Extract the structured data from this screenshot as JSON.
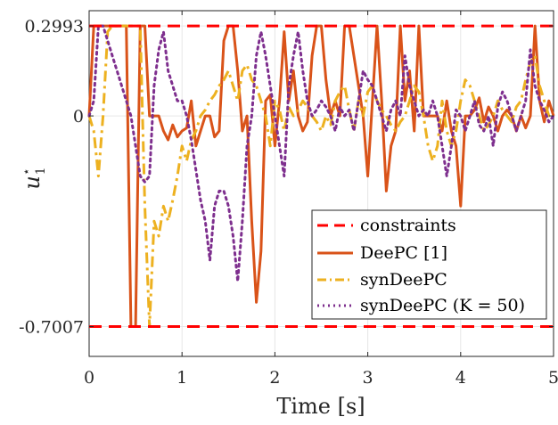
{
  "chart_data": {
    "type": "line",
    "xlabel": "Time [s]",
    "ylabel": "u",
    "ylabel_superscript": "⋆",
    "ylabel_subscript": "1",
    "xlim": [
      0,
      5
    ],
    "ylim": [
      -0.8,
      0.35
    ],
    "xticks": [
      0,
      1,
      2,
      3,
      4,
      5
    ],
    "xtick_labels": [
      "0",
      "1",
      "2",
      "3",
      "4",
      "5"
    ],
    "yticks": [
      0.2993,
      0,
      -0.7007
    ],
    "ytick_labels": [
      "0.2993",
      "0",
      "-0.7007"
    ],
    "grid": true,
    "legend_position": "lower-right",
    "series": [
      {
        "name": "constraints",
        "color": "#ff0000",
        "style": "dashed",
        "x": [
          0,
          5
        ],
        "y": [
          0.2993,
          0.2993
        ],
        "y2": [
          -0.7007,
          -0.7007
        ]
      },
      {
        "name": "DeePC [1]",
        "color": "#d95319",
        "style": "solid",
        "x": [
          0.0,
          0.05,
          0.1,
          0.15,
          0.2,
          0.25,
          0.3,
          0.35,
          0.4,
          0.45,
          0.5,
          0.55,
          0.6,
          0.65,
          0.7,
          0.75,
          0.8,
          0.85,
          0.9,
          0.95,
          1.0,
          1.05,
          1.1,
          1.15,
          1.2,
          1.25,
          1.3,
          1.35,
          1.4,
          1.45,
          1.5,
          1.55,
          1.6,
          1.65,
          1.7,
          1.75,
          1.8,
          1.85,
          1.9,
          1.95,
          2.0,
          2.05,
          2.1,
          2.15,
          2.2,
          2.25,
          2.3,
          2.35,
          2.4,
          2.45,
          2.5,
          2.55,
          2.6,
          2.65,
          2.7,
          2.75,
          2.8,
          2.85,
          2.9,
          2.95,
          3.0,
          3.05,
          3.1,
          3.15,
          3.2,
          3.25,
          3.3,
          3.35,
          3.4,
          3.45,
          3.5,
          3.55,
          3.6,
          3.65,
          3.7,
          3.75,
          3.8,
          3.85,
          3.9,
          3.95,
          4.0,
          4.05,
          4.1,
          4.15,
          4.2,
          4.25,
          4.3,
          4.35,
          4.4,
          4.45,
          4.5,
          4.55,
          4.6,
          4.65,
          4.7,
          4.75,
          4.8,
          4.85,
          4.9,
          4.95,
          5.0
        ],
        "y": [
          0.0,
          0.2993,
          0.2993,
          0.2993,
          0.2993,
          0.2993,
          0.2993,
          0.2993,
          0.2993,
          -0.7007,
          -0.7007,
          0.2993,
          0.2993,
          0.0,
          0.0,
          0.0,
          -0.05,
          -0.08,
          -0.03,
          -0.07,
          -0.05,
          -0.04,
          0.05,
          -0.1,
          -0.05,
          0.0,
          0.0,
          -0.07,
          -0.05,
          0.25,
          0.2993,
          0.2993,
          0.15,
          -0.05,
          0.0,
          -0.35,
          -0.62,
          -0.45,
          0.05,
          0.07,
          -0.1,
          0.05,
          0.28,
          0.05,
          0.15,
          0.0,
          -0.05,
          -0.02,
          0.2,
          0.2993,
          0.2993,
          0.12,
          0.0,
          0.05,
          0.0,
          0.2993,
          0.2993,
          0.2,
          0.1,
          0.0,
          -0.2,
          0.05,
          0.2993,
          0.05,
          -0.25,
          -0.1,
          -0.05,
          0.2993,
          0.05,
          0.15,
          -0.05,
          0.2993,
          0.0,
          0.0,
          0.0,
          0.0,
          -0.05,
          0.05,
          -0.05,
          -0.1,
          -0.3,
          0.0,
          0.0,
          0.02,
          0.06,
          -0.02,
          0.03,
          0.0,
          -0.05,
          0.0,
          0.02,
          0.0,
          -0.05,
          0.0,
          -0.04,
          0.0,
          0.2993,
          0.05,
          -0.02,
          0.05,
          0.0
        ]
      },
      {
        "name": "synDeePC",
        "color": "#edb120",
        "style": "dashdot",
        "x": [
          0.0,
          0.05,
          0.1,
          0.15,
          0.2,
          0.25,
          0.3,
          0.35,
          0.4,
          0.45,
          0.5,
          0.55,
          0.6,
          0.65,
          0.7,
          0.75,
          0.8,
          0.85,
          0.9,
          0.95,
          1.0,
          1.05,
          1.1,
          1.15,
          1.2,
          1.25,
          1.3,
          1.35,
          1.4,
          1.45,
          1.5,
          1.55,
          1.6,
          1.65,
          1.7,
          1.75,
          1.8,
          1.85,
          1.9,
          1.95,
          2.0,
          2.05,
          2.1,
          2.15,
          2.2,
          2.25,
          2.3,
          2.35,
          2.4,
          2.45,
          2.5,
          2.55,
          2.6,
          2.65,
          2.7,
          2.75,
          2.8,
          2.85,
          2.9,
          2.95,
          3.0,
          3.05,
          3.1,
          3.15,
          3.2,
          3.25,
          3.3,
          3.35,
          3.4,
          3.45,
          3.5,
          3.55,
          3.6,
          3.65,
          3.7,
          3.75,
          3.8,
          3.85,
          3.9,
          3.95,
          4.0,
          4.05,
          4.1,
          4.15,
          4.2,
          4.25,
          4.3,
          4.35,
          4.4,
          4.45,
          4.5,
          4.55,
          4.6,
          4.65,
          4.7,
          4.75,
          4.8,
          4.85,
          4.9,
          4.95,
          5.0
        ],
        "y": [
          0.0,
          -0.05,
          -0.2,
          0.0,
          0.28,
          0.2993,
          0.2993,
          0.2993,
          0.2993,
          0.2993,
          0.2993,
          0.2993,
          -0.3,
          -0.7007,
          -0.35,
          -0.4,
          -0.3,
          -0.35,
          -0.28,
          -0.2,
          -0.1,
          -0.15,
          -0.08,
          -0.05,
          0.0,
          0.02,
          0.05,
          0.07,
          0.1,
          0.12,
          0.15,
          0.1,
          0.05,
          0.15,
          0.17,
          0.12,
          0.1,
          0.05,
          0.0,
          -0.1,
          0.05,
          0.02,
          -0.05,
          0.03,
          0.0,
          0.02,
          0.05,
          0.03,
          0.0,
          -0.02,
          -0.05,
          0.0,
          -0.03,
          0.05,
          0.08,
          0.1,
          0.02,
          -0.05,
          0.05,
          0.0,
          0.08,
          0.1,
          0.05,
          0.02,
          0.0,
          -0.03,
          -0.05,
          -0.02,
          0.0,
          0.05,
          0.1,
          0.08,
          0.0,
          -0.1,
          -0.15,
          -0.1,
          0.05,
          -0.05,
          -0.1,
          -0.05,
          0.05,
          0.12,
          0.1,
          0.05,
          0.0,
          -0.05,
          -0.03,
          0.0,
          0.05,
          0.02,
          0.0,
          -0.02,
          0.03,
          0.05,
          0.12,
          0.18,
          0.2,
          0.1,
          0.05,
          0.0,
          0.0
        ]
      },
      {
        "name": "synDeePC (K = 50)",
        "color": "#7e2f8e",
        "style": "dotted",
        "x": [
          0.0,
          0.05,
          0.1,
          0.15,
          0.2,
          0.25,
          0.3,
          0.35,
          0.4,
          0.45,
          0.5,
          0.55,
          0.6,
          0.65,
          0.7,
          0.75,
          0.8,
          0.85,
          0.9,
          0.95,
          1.0,
          1.05,
          1.1,
          1.15,
          1.2,
          1.25,
          1.3,
          1.35,
          1.4,
          1.45,
          1.5,
          1.55,
          1.6,
          1.65,
          1.7,
          1.75,
          1.8,
          1.85,
          1.9,
          1.95,
          2.0,
          2.05,
          2.1,
          2.15,
          2.2,
          2.25,
          2.3,
          2.35,
          2.4,
          2.45,
          2.5,
          2.55,
          2.6,
          2.65,
          2.7,
          2.75,
          2.8,
          2.85,
          2.9,
          2.95,
          3.0,
          3.05,
          3.1,
          3.15,
          3.2,
          3.25,
          3.3,
          3.35,
          3.4,
          3.45,
          3.5,
          3.55,
          3.6,
          3.65,
          3.7,
          3.75,
          3.8,
          3.85,
          3.9,
          3.95,
          4.0,
          4.05,
          4.1,
          4.15,
          4.2,
          4.25,
          4.3,
          4.35,
          4.4,
          4.45,
          4.5,
          4.55,
          4.6,
          4.65,
          4.7,
          4.75,
          4.8,
          4.85,
          4.9,
          4.95,
          5.0
        ],
        "y": [
          0.0,
          0.05,
          0.2993,
          0.2993,
          0.25,
          0.2,
          0.15,
          0.1,
          0.05,
          0.0,
          -0.1,
          -0.2,
          -0.22,
          -0.2,
          0.1,
          0.22,
          0.28,
          0.15,
          0.1,
          0.05,
          0.05,
          0.0,
          -0.08,
          -0.18,
          -0.28,
          -0.35,
          -0.48,
          -0.3,
          -0.25,
          -0.25,
          -0.3,
          -0.4,
          -0.55,
          -0.35,
          -0.1,
          0.0,
          0.2,
          0.28,
          0.2,
          0.1,
          0.0,
          -0.1,
          -0.2,
          0.1,
          0.2,
          0.28,
          0.15,
          0.05,
          0.0,
          0.02,
          0.05,
          0.03,
          0.0,
          -0.05,
          0.03,
          0.0,
          0.02,
          -0.05,
          0.05,
          0.15,
          0.12,
          0.1,
          0.05,
          0.0,
          -0.05,
          0.02,
          0.05,
          0.0,
          0.2,
          0.1,
          0.05,
          0.0,
          0.02,
          0.0,
          0.05,
          0.0,
          -0.1,
          -0.2,
          -0.1,
          0.02,
          0.0,
          -0.05,
          0.0,
          0.05,
          -0.03,
          -0.05,
          0.0,
          -0.1,
          0.03,
          0.08,
          0.05,
          0.0,
          -0.05,
          0.0,
          0.05,
          0.22,
          0.1,
          0.05,
          0.02,
          -0.02,
          0.0
        ]
      }
    ]
  }
}
